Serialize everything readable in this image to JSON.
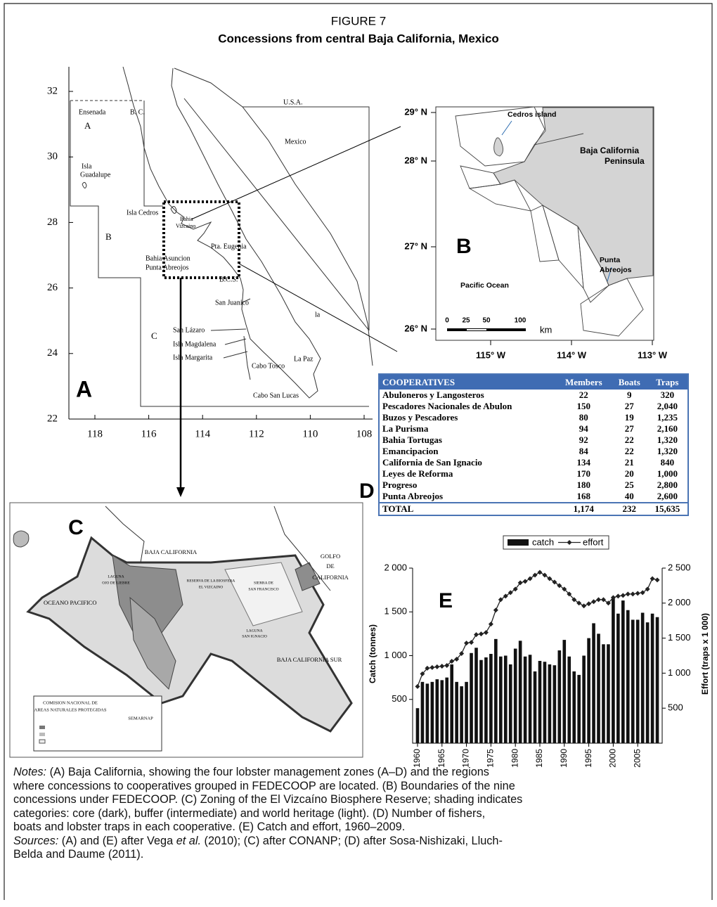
{
  "figure": {
    "label": "FIGURE 7",
    "title": "Concessions from central Baja California, Mexico"
  },
  "panel_a": {
    "letter": "A",
    "yticks": [
      32,
      30,
      28,
      26,
      24,
      22
    ],
    "xticks": [
      118,
      116,
      114,
      112,
      110,
      108
    ],
    "zones": [
      "A",
      "B",
      "C"
    ],
    "places": [
      "Ensenada",
      "B. C.",
      "U.S.A.",
      "Mexico",
      "Isla",
      "Guadalupe",
      "Isla Cedros",
      "Bahia",
      "Vizcaino",
      "Pta. Eugenia",
      "Bahia Asuncion",
      "Punta Abreojos",
      "B.C.S.",
      "San Juanico",
      "San Lázaro",
      "Isla Magdalena",
      "Isla Margarita",
      "Cabo Tosco",
      "La Paz",
      "la",
      "Cabo San Lucas"
    ]
  },
  "panel_b": {
    "letter": "B",
    "yticks": [
      "29° N",
      "28° N",
      "27° N",
      "26° N"
    ],
    "xticks": [
      "115° W",
      "114° W",
      "113° W"
    ],
    "places": [
      "Cedros island",
      "Baja California",
      "Peninsula",
      "Punta",
      "Abreojos",
      "Pacific Ocean"
    ],
    "scale": [
      "0",
      "25",
      "50",
      "100",
      "km"
    ]
  },
  "panel_c": {
    "letter": "C",
    "places": [
      "BAJA CALIFORNIA",
      "GOLFO",
      "DE",
      "CALIFORNIA",
      "OCEANO PACIFICO",
      "BAJA CALIFORNIA SUR",
      "LAGUNA",
      "OJO DE LIEBRE",
      "RESERVA DE LA BIOSFERA",
      "EL VIZCAINO",
      "SIERRA DE",
      "SAN FRANCISCO",
      "LAGUNA",
      "SAN IGNACIO",
      "COMISION NACIONAL DE",
      "AREAS NATURALES PROTEGIDAS",
      "SEMARNAP"
    ]
  },
  "panel_d": {
    "letter": "D",
    "table": {
      "header": [
        "COOPERATIVES",
        "Members",
        "Boats",
        "Traps"
      ],
      "rows": [
        [
          "Abuloneros y Langosteros",
          "22",
          "9",
          "320"
        ],
        [
          "Pescadores Nacionales de Abulon",
          "150",
          "27",
          "2,040"
        ],
        [
          "Buzos y Pescadores",
          "80",
          "19",
          "1,235"
        ],
        [
          "La Purisma",
          "94",
          "27",
          "2,160"
        ],
        [
          "Bahia Tortugas",
          "92",
          "22",
          "1,320"
        ],
        [
          "Emancipacion",
          "84",
          "22",
          "1,320"
        ],
        [
          "California de San Ignacio",
          "134",
          "21",
          "840"
        ],
        [
          "Leyes de Reforma",
          "170",
          "20",
          "1,000"
        ],
        [
          "Progreso",
          "180",
          "25",
          "2,800"
        ],
        [
          "Punta Abreojos",
          "168",
          "40",
          "2,600"
        ]
      ],
      "total": [
        "TOTAL",
        "1,174",
        "232",
        "15,635"
      ]
    }
  },
  "chart_data": {
    "type": "combo",
    "letter": "E",
    "x": [
      1960,
      1961,
      1962,
      1963,
      1964,
      1965,
      1966,
      1967,
      1968,
      1969,
      1970,
      1971,
      1972,
      1973,
      1974,
      1975,
      1976,
      1977,
      1978,
      1979,
      1980,
      1981,
      1982,
      1983,
      1984,
      1985,
      1986,
      1987,
      1988,
      1989,
      1990,
      1991,
      1992,
      1993,
      1994,
      1995,
      1996,
      1997,
      1998,
      1999,
      2000,
      2001,
      2002,
      2003,
      2004,
      2005,
      2006,
      2007,
      2008,
      2009
    ],
    "xlim": [
      1959,
      2010
    ],
    "xticks": [
      1960,
      1965,
      1970,
      1975,
      1980,
      1985,
      1990,
      1995,
      2000,
      2005
    ],
    "y_label": "Catch (tonnes)",
    "y2_label": "Effort (traps x 1 000)",
    "ylim": [
      0,
      2000
    ],
    "yticks": [
      500,
      {
        "value": 1000,
        "label": "1 000"
      },
      {
        "value": 1500,
        "label": "1 500"
      },
      {
        "value": 2000,
        "label": "2 000"
      }
    ],
    "y2lim": [
      0,
      2500
    ],
    "y2ticks": [
      500,
      {
        "value": 1000,
        "label": "1 000"
      },
      {
        "value": 1500,
        "label": "1 500"
      },
      {
        "value": 2000,
        "label": "2 000"
      },
      {
        "value": 2500,
        "label": "2 500"
      }
    ],
    "legend": "top",
    "series": [
      {
        "name": "catch",
        "type": "bar",
        "color": "#111111",
        "values": [
          400,
          700,
          680,
          700,
          730,
          720,
          750,
          900,
          700,
          650,
          700,
          1030,
          1090,
          950,
          980,
          1020,
          1190,
          990,
          1000,
          900,
          1080,
          1170,
          990,
          1010,
          820,
          940,
          930,
          900,
          890,
          1060,
          1180,
          990,
          820,
          780,
          1000,
          1200,
          1370,
          1250,
          1130,
          1130,
          1670,
          1480,
          1630,
          1520,
          1410,
          1410,
          1490,
          1380,
          1480,
          1440
        ]
      },
      {
        "name": "effort",
        "type": "line",
        "axis": "y2",
        "color": "#222222",
        "marker": "diamond",
        "values": [
          810,
          990,
          1070,
          1080,
          1090,
          1100,
          1110,
          1170,
          1200,
          1280,
          1430,
          1440,
          1550,
          1560,
          1580,
          1700,
          1900,
          2050,
          2100,
          2150,
          2200,
          2290,
          2310,
          2350,
          2400,
          2440,
          2400,
          2350,
          2300,
          2250,
          2200,
          2130,
          2050,
          2000,
          1960,
          1990,
          2020,
          2050,
          2050,
          2000,
          2080,
          2100,
          2110,
          2130,
          2130,
          2140,
          2150,
          2200,
          2350,
          2330
        ]
      }
    ]
  },
  "notes": {
    "label": "Notes:",
    "lines": [
      "(A) Baja California, showing the four lobster management zones (A–D) and the regions",
      "where concessions to cooperatives grouped in FEDECOOP are located. (B) Boundaries of the nine",
      "concessions under FEDECOOP. (C) Zoning of the El Vizcaíno Biosphere Reserve; shading indicates",
      "categories: core (dark), buffer (intermediate) and world heritage (light). (D) Number of fishers,",
      "boats and lobster traps in each cooperative. (E) Catch and effort, 1960–2009."
    ]
  },
  "sources": {
    "label": "Sources:",
    "before": "(A) and (E) after Vega",
    "italic": "et al.",
    "after": "(2010); (C) after CONANP; (D) after Sosa-Nishizaki, Lluch-",
    "last": "Belda and Daume (2011)."
  }
}
